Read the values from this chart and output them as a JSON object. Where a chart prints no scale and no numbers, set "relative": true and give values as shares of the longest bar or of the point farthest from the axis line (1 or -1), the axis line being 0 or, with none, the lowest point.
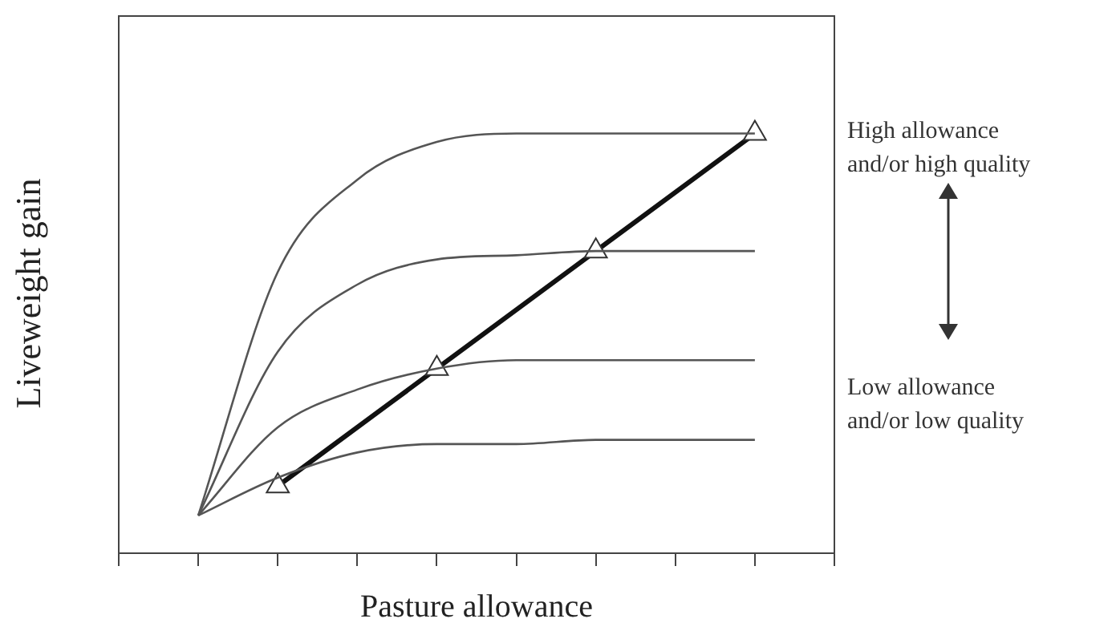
{
  "chart_data": {
    "type": "line",
    "relative": true,
    "xlabel": "Pasture allowance",
    "ylabel": "Liveweight gain",
    "categories": [
      null,
      null,
      null,
      null,
      null,
      null,
      null,
      null,
      null,
      null
    ],
    "series": [
      {
        "color": "#555555",
        "marker": "none",
        "values": [
          null,
          0.09,
          0.67,
          0.89,
          0.98,
          1,
          1,
          1,
          1,
          null
        ]
      },
      {
        "color": "#555555",
        "marker": "none",
        "values": [
          null,
          0.09,
          0.48,
          0.64,
          0.7,
          0.71,
          0.72,
          0.72,
          0.72,
          null
        ]
      },
      {
        "color": "#555555",
        "marker": "none",
        "values": [
          null,
          0.09,
          0.3,
          0.39,
          0.44,
          0.46,
          0.46,
          0.46,
          0.46,
          null
        ]
      },
      {
        "color": "#555555",
        "marker": "none",
        "values": [
          null,
          0.09,
          0.18,
          0.24,
          0.26,
          0.26,
          0.27,
          0.27,
          0.27,
          null
        ]
      },
      {
        "color": "#111111",
        "marker": "triangle",
        "values": [
          null,
          null,
          0.16,
          null,
          0.44,
          null,
          0.72,
          null,
          1,
          null
        ]
      }
    ],
    "annotations": [
      "High allowance and/or high quality",
      "Low allowance and/or low quality"
    ],
    "tick_labels": false,
    "grid": false,
    "legend": false
  }
}
